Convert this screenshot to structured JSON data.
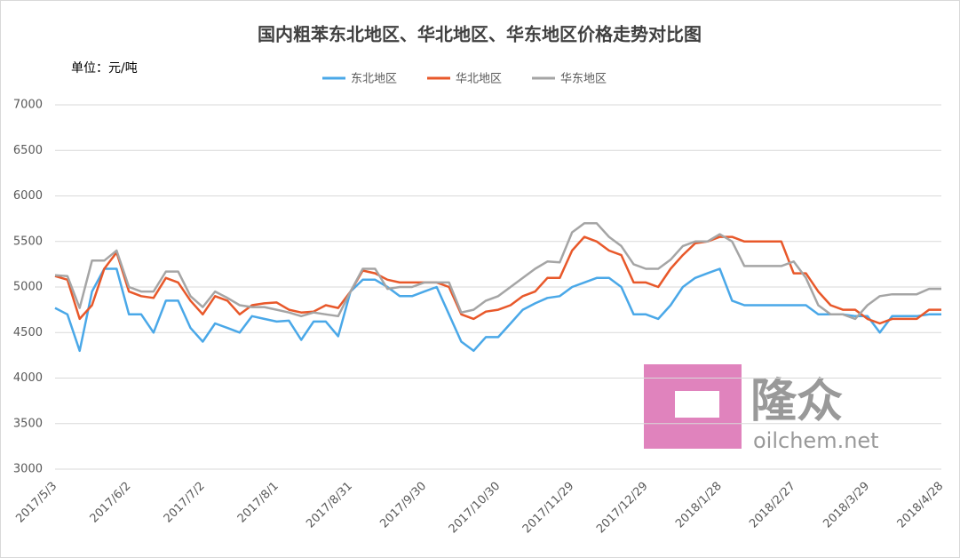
{
  "chart_data": {
    "type": "line",
    "title": "国内粗苯东北地区、华北地区、华东地区价格走势对比图",
    "unit_label": "单位：元/吨",
    "watermark": {
      "brand": "隆众",
      "site": "oilchem.net"
    },
    "categories": [
      "2017/5/3",
      null,
      null,
      null,
      null,
      null,
      "2017/6/2",
      null,
      null,
      null,
      null,
      null,
      "2017/7/2",
      null,
      null,
      null,
      null,
      null,
      "2017/8/1",
      null,
      null,
      null,
      null,
      null,
      "2017/8/31",
      null,
      null,
      null,
      null,
      null,
      "2017/9/30",
      null,
      null,
      null,
      null,
      null,
      "2017/10/30",
      null,
      null,
      null,
      null,
      null,
      "2017/11/29",
      null,
      null,
      null,
      null,
      null,
      "2017/12/29",
      null,
      null,
      null,
      null,
      null,
      "2018/1/28",
      null,
      null,
      null,
      null,
      null,
      "2018/2/27",
      null,
      null,
      null,
      null,
      null,
      "2018/3/29",
      null,
      null,
      null,
      null,
      null,
      "2018/4/28"
    ],
    "series": [
      {
        "name": "东北地区",
        "color": "#4aa8e8",
        "values": [
          4770,
          4700,
          4300,
          4950,
          5200,
          5200,
          4700,
          4700,
          4500,
          4850,
          4850,
          4550,
          4400,
          4600,
          4550,
          4500,
          4680,
          4650,
          4620,
          4630,
          4420,
          4620,
          4620,
          4460,
          4950,
          5080,
          5080,
          5000,
          4900,
          4900,
          4950,
          5000,
          4700,
          4400,
          4300,
          4450,
          4450,
          4600,
          4750,
          4820,
          4880,
          4900,
          5000,
          5050,
          5100,
          5100,
          5000,
          4700,
          4700,
          4650,
          4800,
          5000,
          5100,
          5150,
          5200,
          4850,
          4800,
          4800,
          4800,
          4800,
          4800,
          4800,
          4700,
          4700,
          4700,
          4680,
          4680,
          4500,
          4680,
          4680,
          4680,
          4700,
          4700
        ]
      },
      {
        "name": "华北地区",
        "color": "#e8582a",
        "values": [
          5120,
          5080,
          4650,
          4800,
          5200,
          5380,
          4950,
          4900,
          4880,
          5100,
          5050,
          4850,
          4700,
          4900,
          4850,
          4700,
          4800,
          4820,
          4830,
          4750,
          4720,
          4730,
          4800,
          4770,
          4950,
          5180,
          5150,
          5080,
          5050,
          5050,
          5050,
          5050,
          5000,
          4700,
          4650,
          4730,
          4750,
          4800,
          4900,
          4950,
          5100,
          5100,
          5400,
          5550,
          5500,
          5400,
          5350,
          5050,
          5050,
          5000,
          5200,
          5350,
          5480,
          5500,
          5550,
          5550,
          5500,
          5500,
          5500,
          5500,
          5150,
          5150,
          4950,
          4800,
          4750,
          4750,
          4650,
          4600,
          4650,
          4650,
          4650,
          4750,
          4750
        ]
      },
      {
        "name": "华东地区",
        "color": "#a5a5a5",
        "values": [
          5130,
          5120,
          4770,
          5290,
          5290,
          5400,
          5000,
          4950,
          4950,
          5170,
          5170,
          4900,
          4780,
          4950,
          4880,
          4800,
          4780,
          4780,
          4750,
          4720,
          4680,
          4720,
          4700,
          4680,
          4950,
          5200,
          5200,
          4980,
          5000,
          5000,
          5050,
          5050,
          5050,
          4720,
          4750,
          4850,
          4900,
          5000,
          5100,
          5200,
          5280,
          5270,
          5600,
          5700,
          5700,
          5550,
          5450,
          5250,
          5200,
          5200,
          5300,
          5450,
          5500,
          5500,
          5580,
          5500,
          5230,
          5230,
          5230,
          5230,
          5280,
          5100,
          4800,
          4700,
          4700,
          4650,
          4800,
          4900,
          4920,
          4920,
          4920,
          4980,
          4980
        ]
      }
    ],
    "ylim": [
      3000,
      7000
    ],
    "yticks": [
      3000,
      3500,
      4000,
      4500,
      5000,
      5500,
      6000,
      6500,
      7000
    ],
    "grid": true
  }
}
